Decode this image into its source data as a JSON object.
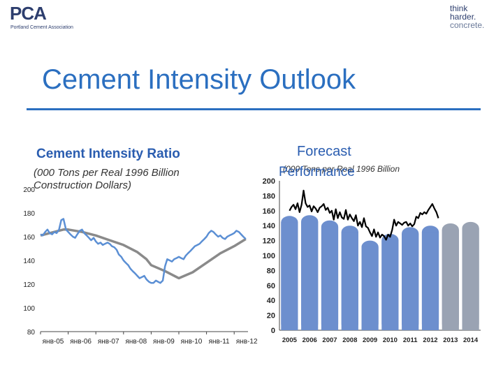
{
  "header": {
    "logo_text": "PCA",
    "logo_subtext": "Portland Cement Association",
    "tagline": [
      "think",
      "harder.",
      "concrete."
    ]
  },
  "slide": {
    "title": "Cement Intensity Outlook"
  },
  "colors": {
    "accent": "#2b6fc0",
    "ratio_line": "#5b8fd4",
    "trend_line": "#8a8a8a",
    "bar_actual": "#6d8fce",
    "bar_forecast": "#9aa3b3",
    "perf_line": "#000000"
  },
  "chart_data": [
    {
      "type": "line",
      "title": "Cement Intensity Ratio",
      "subtitle": "(000 Tons per Real 1996 Billion Construction Dollars)",
      "ylim": [
        80,
        200
      ],
      "yticks": [
        80,
        100,
        120,
        140,
        160,
        180,
        200
      ],
      "xticks": [
        "янв-05",
        "янв-06",
        "янв-07",
        "янв-08",
        "янв-09",
        "янв-10",
        "янв-11",
        "янв-12"
      ],
      "xlim": [
        2005.0,
        2012.5
      ],
      "series": [
        {
          "x": [
            2005.0,
            2005.08,
            2005.17,
            2005.25,
            2005.33,
            2005.42,
            2005.5,
            2005.58,
            2005.67,
            2005.75,
            2005.83,
            2005.92,
            2006.0,
            2006.08,
            2006.17,
            2006.25,
            2006.33,
            2006.42,
            2006.5,
            2006.58,
            2006.67,
            2006.75,
            2006.83,
            2006.92,
            2007.0,
            2007.08,
            2007.17,
            2007.25,
            2007.33,
            2007.42,
            2007.5,
            2007.58,
            2007.67,
            2007.75,
            2007.83,
            2007.92,
            2008.0,
            2008.08,
            2008.17,
            2008.25,
            2008.33,
            2008.42,
            2008.5,
            2008.58,
            2008.67,
            2008.75,
            2008.83,
            2008.92,
            2009.0,
            2009.08,
            2009.17,
            2009.25,
            2009.33,
            2009.42,
            2009.5,
            2009.58,
            2009.67,
            2009.75,
            2009.83,
            2009.92,
            2010.0,
            2010.08,
            2010.17,
            2010.25,
            2010.33,
            2010.42,
            2010.5,
            2010.58,
            2010.67,
            2010.75,
            2010.83,
            2010.92,
            2011.0,
            2011.08,
            2011.17,
            2011.25,
            2011.33,
            2011.42,
            2011.5,
            2011.58,
            2011.67,
            2011.75,
            2011.83,
            2011.92,
            2012.0,
            2012.08,
            2012.17,
            2012.25,
            2012.33,
            2012.42
          ],
          "values": [
            162,
            161,
            164,
            166,
            163,
            162,
            164,
            163,
            166,
            174,
            175,
            166,
            164,
            162,
            160,
            159,
            162,
            165,
            166,
            163,
            161,
            159,
            157,
            159,
            156,
            154,
            155,
            153,
            154,
            155,
            154,
            152,
            151,
            149,
            145,
            143,
            140,
            138,
            136,
            133,
            131,
            129,
            127,
            125,
            126,
            127,
            124,
            122,
            121,
            121,
            123,
            122,
            121,
            123,
            135,
            141,
            140,
            139,
            141,
            142,
            143,
            142,
            141,
            144,
            146,
            148,
            150,
            152,
            153,
            154,
            156,
            158,
            160,
            163,
            165,
            164,
            162,
            160,
            161,
            159,
            158,
            160,
            161,
            162,
            163,
            165,
            164,
            162,
            160,
            158
          ]
        },
        {
          "x": [
            2005.0,
            2005.5,
            2005.83,
            2006.0,
            2006.5,
            2007.0,
            2007.5,
            2008.0,
            2008.5,
            2008.83,
            2009.0,
            2009.5,
            2010.0,
            2010.5,
            2011.0,
            2011.5,
            2012.0,
            2012.42
          ],
          "values": [
            161,
            164,
            166,
            166,
            164,
            161,
            157,
            153,
            147,
            141,
            136,
            131,
            125,
            130,
            138,
            146,
            152,
            158
          ]
        }
      ]
    },
    {
      "type": "bar",
      "title": "Forecast",
      "subtitle": "(000 Tons per Real 1996 Billion",
      "overlay_title": "Performance",
      "ylim": [
        0,
        200
      ],
      "yticks": [
        0,
        20,
        40,
        60,
        80,
        100,
        120,
        140,
        160,
        180,
        200
      ],
      "categories": [
        "2005",
        "2006",
        "2007",
        "2008",
        "2009",
        "2010",
        "2011",
        "2012",
        "2013",
        "2014"
      ],
      "values": [
        153,
        154,
        147,
        140,
        120,
        129,
        138,
        140,
        143,
        145
      ],
      "forecast_from_index": 8,
      "line": {
        "x": [
          2005.0,
          2005.1,
          2005.2,
          2005.3,
          2005.4,
          2005.5,
          2005.6,
          2005.7,
          2005.8,
          2005.9,
          2006.0,
          2006.1,
          2006.2,
          2006.3,
          2006.4,
          2006.5,
          2006.6,
          2006.7,
          2006.8,
          2006.9,
          2007.0,
          2007.1,
          2007.2,
          2007.3,
          2007.4,
          2007.5,
          2007.6,
          2007.7,
          2007.8,
          2007.9,
          2008.0,
          2008.1,
          2008.2,
          2008.3,
          2008.4,
          2008.5,
          2008.6,
          2008.7,
          2008.8,
          2008.9,
          2009.0,
          2009.1,
          2009.2,
          2009.3,
          2009.4,
          2009.5,
          2009.6,
          2009.7,
          2009.8,
          2009.9,
          2010.0,
          2010.1,
          2010.2,
          2010.3,
          2010.4,
          2010.5,
          2010.6,
          2010.7,
          2010.8,
          2010.9,
          2011.0,
          2011.1,
          2011.2,
          2011.3,
          2011.4,
          2011.5,
          2011.6,
          2011.7,
          2011.8,
          2011.9,
          2012.0,
          2012.1,
          2012.2,
          2012.3,
          2012.4
        ],
        "values": [
          160,
          165,
          168,
          162,
          170,
          158,
          168,
          187,
          170,
          165,
          167,
          159,
          166,
          163,
          158,
          164,
          166,
          169,
          161,
          164,
          157,
          160,
          148,
          162,
          150,
          158,
          151,
          149,
          161,
          148,
          155,
          150,
          146,
          154,
          140,
          145,
          138,
          150,
          139,
          137,
          131,
          126,
          135,
          125,
          131,
          124,
          128,
          126,
          121,
          128,
          125,
          134,
          148,
          140,
          145,
          143,
          141,
          144,
          145,
          140,
          143,
          139,
          142,
          152,
          150,
          157,
          155,
          158,
          156,
          161,
          165,
          169,
          163,
          158,
          150
        ]
      },
      "xlim": [
        2004.5,
        2014.5
      ]
    }
  ]
}
